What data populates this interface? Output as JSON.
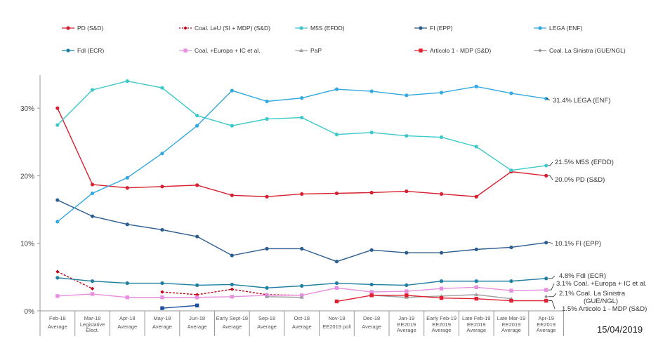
{
  "chart_data": {
    "type": "line",
    "title": "",
    "xlabel": "",
    "ylabel": "",
    "ylim": [
      0,
      36
    ],
    "yticks": [
      "0%",
      "10%",
      "20%",
      "30%"
    ],
    "ytick_values": [
      0,
      10,
      20,
      30
    ],
    "grid": false,
    "legend_placement": "top",
    "categories": [
      [
        "Feb-18",
        "Average"
      ],
      [
        "Mar-18",
        "Legislative",
        "Elect."
      ],
      [
        "Apr-18",
        "Average"
      ],
      [
        "May-18",
        "Average"
      ],
      [
        "Jun-18",
        "Average"
      ],
      [
        "Early Sept-18",
        "Average"
      ],
      [
        "Sep-18",
        "Average"
      ],
      [
        "Oct-18",
        "Average"
      ],
      [
        "Nov-18",
        "EE2019 poll"
      ],
      [
        "Dec-18",
        "Average"
      ],
      [
        "Jan-19",
        "EE2019",
        "Average"
      ],
      [
        "Early Feb-19",
        "EE2019",
        "Average"
      ],
      [
        "Late Feb-19",
        "EE2019",
        "Average"
      ],
      [
        "Late Mar-19",
        "EE2019",
        "Average"
      ],
      [
        "Apr-19",
        "EE2019",
        "Average"
      ]
    ],
    "series": [
      {
        "name": "PD (S&D)",
        "color": "#d62030",
        "marker": "circle",
        "dash": false,
        "end_label": "20.0% PD (S&D)",
        "values": [
          30.0,
          18.7,
          18.2,
          18.4,
          18.6,
          17.1,
          16.9,
          17.3,
          17.4,
          17.5,
          17.7,
          17.3,
          16.9,
          20.6,
          20.0
        ]
      },
      {
        "name": "Coal. LeU (SI + MDP) (S&D)",
        "color": "#c00018",
        "marker": "diamond",
        "dash": true,
        "end_label": "",
        "values": [
          5.8,
          3.3,
          null,
          2.8,
          2.4,
          3.2,
          2.4,
          2.3,
          null,
          null,
          null,
          null,
          null,
          null,
          null
        ]
      },
      {
        "name": "M5S (EFDD)",
        "color": "#3cc8c8",
        "marker": "circle",
        "dash": false,
        "end_label": "21.5% M5S (EFDD)",
        "values": [
          27.5,
          32.7,
          34.0,
          33.0,
          28.9,
          27.4,
          28.4,
          28.6,
          26.1,
          26.4,
          25.9,
          25.7,
          24.3,
          20.8,
          21.5
        ]
      },
      {
        "name": "FI (EPP)",
        "color": "#2c5d90",
        "marker": "circle",
        "dash": false,
        "end_label": "10.1% FI (EPP)",
        "values": [
          16.4,
          14.0,
          12.8,
          12.0,
          11.0,
          8.2,
          9.2,
          9.2,
          7.3,
          9.0,
          8.6,
          8.6,
          9.1,
          9.4,
          10.1
        ]
      },
      {
        "name": "LEGA (ENF)",
        "color": "#30a8e0",
        "marker": "circle",
        "dash": false,
        "end_label": "31.4% LEGA (ENF)",
        "values": [
          13.2,
          17.4,
          19.7,
          23.3,
          27.4,
          32.6,
          31.0,
          31.5,
          32.8,
          32.5,
          31.9,
          32.3,
          33.2,
          32.2,
          31.4
        ]
      },
      {
        "name": "FdI (ECR)",
        "color": "#1f7fa0",
        "marker": "circle",
        "dash": false,
        "end_label": "4.8% FdI (ECR)",
        "values": [
          4.9,
          4.4,
          4.1,
          4.1,
          3.8,
          3.9,
          3.4,
          3.7,
          4.1,
          3.9,
          3.8,
          4.4,
          4.4,
          4.4,
          4.8
        ]
      },
      {
        "name": "Coal. +Europa + IC et al.",
        "color": "#e890e0",
        "marker": "square",
        "dash": false,
        "end_label": "3.1% Coal. +Europa + IC et al.",
        "values": [
          2.2,
          2.5,
          2.0,
          2.0,
          2.0,
          2.1,
          2.3,
          2.3,
          3.4,
          2.8,
          2.9,
          3.3,
          3.5,
          3.0,
          3.1
        ]
      },
      {
        "name": "PaP",
        "color": "#a0a0a0",
        "marker": "triangle",
        "dash": false,
        "end_label": "",
        "values": [
          null,
          null,
          null,
          null,
          null,
          null,
          2.1,
          2.0,
          null,
          2.3,
          2.0,
          2.2,
          2.4,
          1.8,
          null
        ]
      },
      {
        "name": "Articolo 1 - MDP (S&D)",
        "color": "#e02030",
        "marker": "square",
        "dash": false,
        "end_label": "1.5% Articolo 1 - MDP (S&D)",
        "values": [
          null,
          null,
          null,
          null,
          null,
          null,
          null,
          null,
          1.4,
          2.3,
          2.3,
          1.9,
          1.8,
          1.5,
          1.5
        ]
      },
      {
        "name": "Coal. La Sinistra (GUE/NGL)",
        "color": "#909090",
        "marker": "diamond",
        "dash": false,
        "end_label": "2.1% Coal. La Sinistra",
        "end_label_2": "(GUE/NGL)",
        "values": [
          null,
          null,
          null,
          null,
          null,
          null,
          null,
          null,
          null,
          null,
          null,
          null,
          null,
          null,
          2.1
        ]
      },
      {
        "name": "",
        "color": "#2050a0",
        "marker": "square",
        "dash": false,
        "end_label": "",
        "legend": false,
        "values": [
          null,
          null,
          null,
          0.4,
          0.8,
          null,
          null,
          null,
          null,
          null,
          null,
          null,
          null,
          null,
          null
        ]
      }
    ]
  },
  "date_stamp": "15/04/2019"
}
